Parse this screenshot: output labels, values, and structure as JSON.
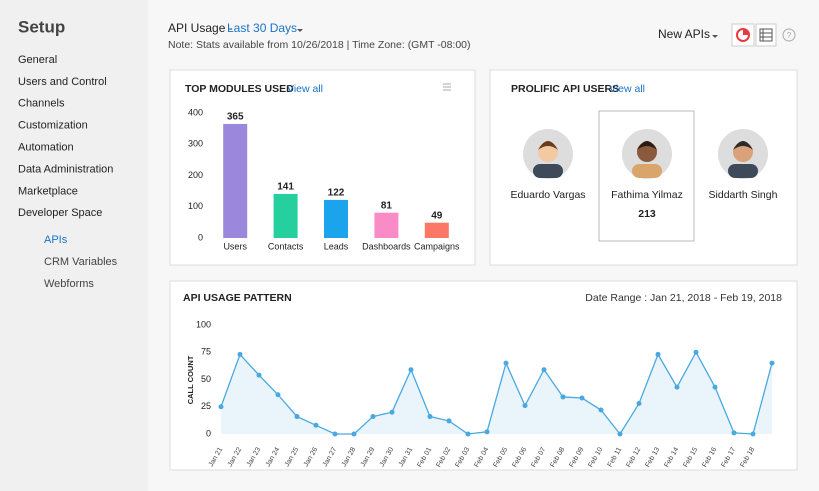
{
  "sidebar": {
    "title": "Setup",
    "items": [
      "General",
      "Users and Control",
      "Channels",
      "Customization",
      "Automation",
      "Data Administration",
      "Marketplace",
      "Developer Space"
    ],
    "subitems": [
      "APIs",
      "CRM Variables",
      "Webforms"
    ]
  },
  "header": {
    "title": "API Usage -",
    "range": "Last 30 Days",
    "note": "Note: Stats available from 10/26/2018 | Time Zone: (GMT -08:00)",
    "new_apis": "New APIs"
  },
  "modules": {
    "title": "TOP MODULES USED",
    "link": "View all",
    "chart_data": {
      "type": "bar",
      "categories": [
        "Users",
        "Contacts",
        "Leads",
        "Dashboards",
        "Campaigns"
      ],
      "values": [
        365,
        141,
        122,
        81,
        49
      ],
      "colors": [
        "#9b87dc",
        "#26cf9e",
        "#1ba3ec",
        "#f98bc6",
        "#fb7866"
      ],
      "ylim": [
        0,
        400
      ],
      "yticks": [
        0,
        100,
        200,
        300,
        400
      ]
    }
  },
  "users": {
    "title": "PROLIFIC API USERS",
    "link": "View all",
    "people": [
      {
        "name": "Eduardo Vargas"
      },
      {
        "name": "Fathima Yilmaz",
        "count": 213
      },
      {
        "name": "Siddarth Singh"
      }
    ]
  },
  "pattern": {
    "title": "API USAGE PATTERN",
    "date_range": "Date Range : Jan 21, 2018 - Feb 19, 2018",
    "chart_data": {
      "type": "line",
      "y_label": "CALL COUNT",
      "color": "#4aa8e0",
      "categories": [
        "Jan 21",
        "Jan 22",
        "Jan 23",
        "Jan 24",
        "Jan 25",
        "Jan 26",
        "Jan 27",
        "Jan 28",
        "Jan 29",
        "Jan 30",
        "Jan 31",
        "Feb 01",
        "Feb 02",
        "Feb 03",
        "Feb 04",
        "Feb 05",
        "Feb 06",
        "Feb 07",
        "Feb 08",
        "Feb 09",
        "Feb 10",
        "Feb 11",
        "Feb 12",
        "Feb 13",
        "Feb 14",
        "Feb 15",
        "Feb 16",
        "Feb 17",
        "Feb 18",
        null
      ],
      "values": [
        25,
        73,
        54,
        36,
        16,
        8,
        0,
        0,
        16,
        20,
        59,
        16,
        12,
        0,
        2,
        65,
        26,
        59,
        34,
        33,
        22,
        0,
        28,
        73,
        43,
        75,
        43,
        1,
        0,
        65
      ],
      "ylim": [
        0,
        100
      ],
      "yticks": [
        0,
        25,
        50,
        75,
        100
      ]
    }
  }
}
